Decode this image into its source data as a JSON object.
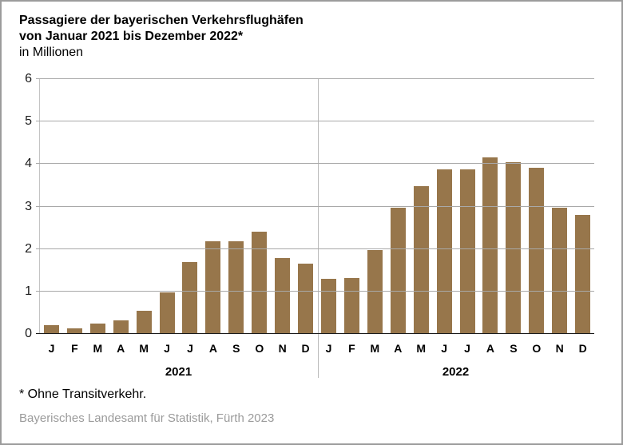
{
  "window": {
    "background": "#ffffff",
    "border_color": "#9c9c9c"
  },
  "header": {
    "title_line1": "Passagiere der bayerischen Verkehrsflughäfen",
    "title_line2": "von Januar 2021 bis Dezember 2022*",
    "unit_label": "in Millionen"
  },
  "chart_data": {
    "type": "bar",
    "title": "Passagiere der bayerischen Verkehrsflughäfen von Januar 2021 bis Dezember 2022*",
    "ylabel": "in Millionen",
    "ylim": [
      0,
      6
    ],
    "yticks": [
      0,
      1,
      2,
      3,
      4,
      5,
      6
    ],
    "grid": true,
    "legend": "none",
    "bar_color": "#97764B",
    "gridline_color": "#a9a9a9",
    "axis_color": "#1a1a1a",
    "groups": [
      {
        "year": "2021",
        "months": [
          "J",
          "F",
          "M",
          "A",
          "M",
          "J",
          "J",
          "A",
          "S",
          "O",
          "N",
          "D"
        ],
        "values": [
          0.2,
          0.13,
          0.25,
          0.32,
          0.55,
          0.97,
          1.7,
          2.18,
          2.18,
          2.4,
          1.78,
          1.66
        ]
      },
      {
        "year": "2022",
        "months": [
          "J",
          "F",
          "M",
          "A",
          "M",
          "J",
          "J",
          "A",
          "S",
          "O",
          "N",
          "D"
        ],
        "values": [
          1.29,
          1.32,
          1.98,
          2.97,
          3.48,
          3.87,
          3.87,
          4.16,
          4.05,
          3.92,
          2.97,
          2.81
        ]
      }
    ]
  },
  "footnote": "* Ohne Transitverkehr.",
  "source": "Bayerisches Landesamt für Statistik, Fürth 2023"
}
